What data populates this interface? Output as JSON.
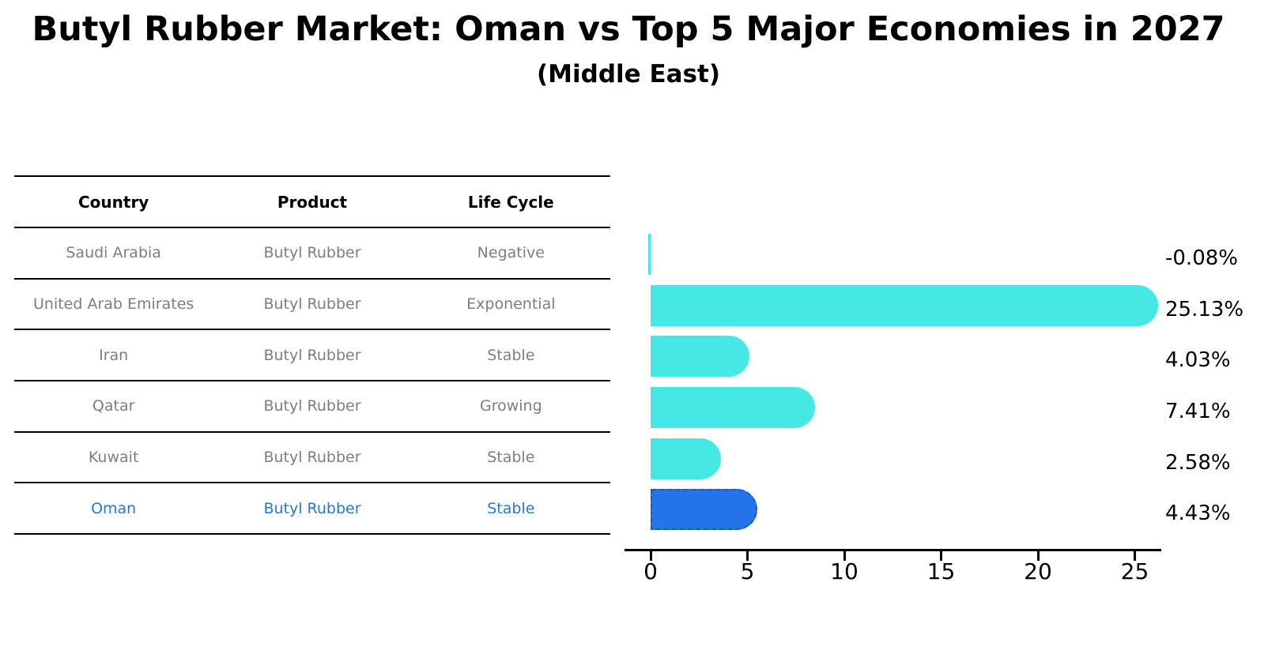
{
  "title": "Butyl Rubber Market: Oman vs Top 5 Major Economies in 2027",
  "subtitle": "(Middle East)",
  "table": {
    "headers": [
      "Country",
      "Product",
      "Life Cycle"
    ],
    "rows": [
      {
        "country": "Saudi Arabia",
        "product": "Butyl Rubber",
        "life_cycle": "Negative",
        "highlighted": false
      },
      {
        "country": "United Arab Emirates",
        "product": "Butyl Rubber",
        "life_cycle": "Exponential",
        "highlighted": false
      },
      {
        "country": "Iran",
        "product": "Butyl Rubber",
        "life_cycle": "Stable",
        "highlighted": false
      },
      {
        "country": "Qatar",
        "product": "Butyl Rubber",
        "life_cycle": "Growing",
        "highlighted": false
      },
      {
        "country": "Kuwait",
        "product": "Butyl Rubber",
        "life_cycle": "Stable",
        "highlighted": false
      },
      {
        "country": "Oman",
        "product": "Butyl Rubber",
        "life_cycle": "Stable",
        "highlighted": true
      }
    ]
  },
  "chart_data": {
    "type": "bar",
    "orientation": "horizontal",
    "title": "Butyl Rubber Market: Oman vs Top 5 Major Economies in 2027 (Middle East)",
    "categories": [
      "Saudi Arabia",
      "United Arab Emirates",
      "Iran",
      "Qatar",
      "Kuwait",
      "Oman"
    ],
    "values": [
      -0.08,
      25.13,
      4.03,
      7.41,
      2.58,
      4.43
    ],
    "value_labels": [
      "-0.08%",
      "25.13%",
      "4.03%",
      "7.41%",
      "2.58%",
      "4.43%"
    ],
    "unit": "%",
    "xticks": [
      0,
      5,
      10,
      15,
      20,
      25
    ],
    "xlim": [
      -0.5,
      26.5
    ],
    "grid": false,
    "legend": false,
    "highlight_index": 5,
    "highlight_category": "Oman"
  },
  "colors": {
    "bar": "#46e8e6",
    "highlight_bar": "#2274e8",
    "highlight_border": "#1757d1",
    "highlight_text": "#2979c9",
    "table_text": "#7e7e7e",
    "axis": "#000000"
  }
}
